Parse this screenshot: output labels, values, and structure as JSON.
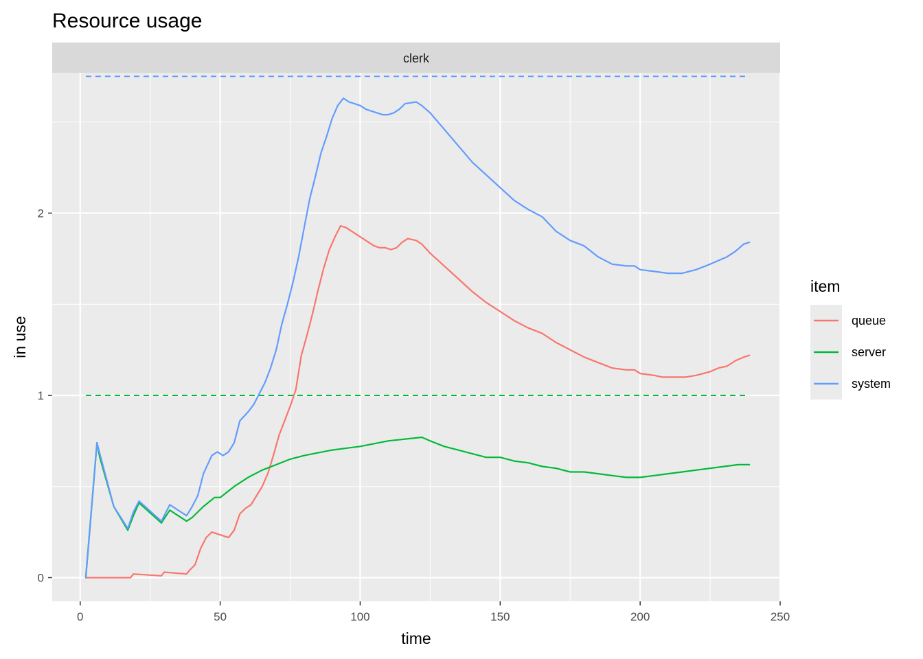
{
  "chart_data": {
    "type": "line",
    "title": "Resource usage",
    "facet": "clerk",
    "xlabel": "time",
    "ylabel": "in use",
    "xlim": [
      -10,
      250
    ],
    "ylim": [
      -0.13,
      2.77
    ],
    "x_ticks": [
      0,
      50,
      100,
      150,
      200,
      250
    ],
    "y_ticks": [
      0,
      1,
      2
    ],
    "grid": true,
    "legend": {
      "title": "item",
      "position": "right"
    },
    "series": [
      {
        "name": "queue",
        "color": "#F8766D",
        "points": [
          [
            2,
            0
          ],
          [
            5,
            0
          ],
          [
            18,
            0
          ],
          [
            19,
            0.02
          ],
          [
            29,
            0.01
          ],
          [
            30,
            0.03
          ],
          [
            38,
            0.02
          ],
          [
            39,
            0.04
          ],
          [
            41,
            0.07
          ],
          [
            43,
            0.16
          ],
          [
            45,
            0.22
          ],
          [
            47,
            0.25
          ],
          [
            49,
            0.24
          ],
          [
            53,
            0.22
          ],
          [
            55,
            0.26
          ],
          [
            57,
            0.35
          ],
          [
            59,
            0.38
          ],
          [
            61,
            0.4
          ],
          [
            63,
            0.45
          ],
          [
            65,
            0.5
          ],
          [
            67,
            0.57
          ],
          [
            69,
            0.67
          ],
          [
            71,
            0.78
          ],
          [
            73,
            0.86
          ],
          [
            75,
            0.94
          ],
          [
            77,
            1.03
          ],
          [
            79,
            1.22
          ],
          [
            81,
            1.33
          ],
          [
            83,
            1.45
          ],
          [
            85,
            1.58
          ],
          [
            87,
            1.7
          ],
          [
            89,
            1.8
          ],
          [
            91,
            1.87
          ],
          [
            93,
            1.93
          ],
          [
            95,
            1.92
          ],
          [
            97,
            1.9
          ],
          [
            99,
            1.88
          ],
          [
            101,
            1.86
          ],
          [
            103,
            1.84
          ],
          [
            105,
            1.82
          ],
          [
            107,
            1.81
          ],
          [
            109,
            1.81
          ],
          [
            111,
            1.8
          ],
          [
            113,
            1.81
          ],
          [
            115,
            1.84
          ],
          [
            117,
            1.86
          ],
          [
            120,
            1.85
          ],
          [
            122,
            1.83
          ],
          [
            125,
            1.78
          ],
          [
            130,
            1.71
          ],
          [
            135,
            1.64
          ],
          [
            140,
            1.57
          ],
          [
            145,
            1.51
          ],
          [
            150,
            1.46
          ],
          [
            155,
            1.41
          ],
          [
            160,
            1.37
          ],
          [
            165,
            1.34
          ],
          [
            170,
            1.29
          ],
          [
            175,
            1.25
          ],
          [
            180,
            1.21
          ],
          [
            185,
            1.18
          ],
          [
            190,
            1.15
          ],
          [
            195,
            1.14
          ],
          [
            198,
            1.14
          ],
          [
            200,
            1.12
          ],
          [
            205,
            1.11
          ],
          [
            208,
            1.1
          ],
          [
            212,
            1.1
          ],
          [
            216,
            1.1
          ],
          [
            220,
            1.11
          ],
          [
            225,
            1.13
          ],
          [
            228,
            1.15
          ],
          [
            231,
            1.16
          ],
          [
            234,
            1.19
          ],
          [
            237,
            1.21
          ],
          [
            239,
            1.22
          ]
        ]
      },
      {
        "name": "server",
        "color": "#00BA38",
        "points": [
          [
            2,
            0
          ],
          [
            6,
            0.74
          ],
          [
            7,
            0.66
          ],
          [
            12,
            0.39
          ],
          [
            17,
            0.26
          ],
          [
            19,
            0.34
          ],
          [
            21,
            0.41
          ],
          [
            29,
            0.3
          ],
          [
            32,
            0.37
          ],
          [
            38,
            0.31
          ],
          [
            40,
            0.33
          ],
          [
            44,
            0.39
          ],
          [
            48,
            0.44
          ],
          [
            50,
            0.44
          ],
          [
            55,
            0.5
          ],
          [
            60,
            0.55
          ],
          [
            65,
            0.59
          ],
          [
            70,
            0.62
          ],
          [
            75,
            0.65
          ],
          [
            80,
            0.67
          ],
          [
            90,
            0.7
          ],
          [
            100,
            0.72
          ],
          [
            110,
            0.75
          ],
          [
            122,
            0.77
          ],
          [
            125,
            0.75
          ],
          [
            130,
            0.72
          ],
          [
            135,
            0.7
          ],
          [
            140,
            0.68
          ],
          [
            145,
            0.66
          ],
          [
            150,
            0.66
          ],
          [
            155,
            0.64
          ],
          [
            160,
            0.63
          ],
          [
            165,
            0.61
          ],
          [
            170,
            0.6
          ],
          [
            175,
            0.58
          ],
          [
            180,
            0.58
          ],
          [
            185,
            0.57
          ],
          [
            190,
            0.56
          ],
          [
            195,
            0.55
          ],
          [
            200,
            0.55
          ],
          [
            205,
            0.56
          ],
          [
            210,
            0.57
          ],
          [
            215,
            0.58
          ],
          [
            220,
            0.59
          ],
          [
            225,
            0.6
          ],
          [
            230,
            0.61
          ],
          [
            235,
            0.62
          ],
          [
            239,
            0.62
          ]
        ]
      },
      {
        "name": "system",
        "color": "#619CFF",
        "points": [
          [
            2,
            0
          ],
          [
            6,
            0.74
          ],
          [
            7,
            0.68
          ],
          [
            12,
            0.39
          ],
          [
            17,
            0.27
          ],
          [
            19,
            0.36
          ],
          [
            21,
            0.42
          ],
          [
            29,
            0.31
          ],
          [
            32,
            0.4
          ],
          [
            38,
            0.34
          ],
          [
            40,
            0.39
          ],
          [
            42,
            0.45
          ],
          [
            44,
            0.57
          ],
          [
            47,
            0.67
          ],
          [
            49,
            0.69
          ],
          [
            51,
            0.67
          ],
          [
            53,
            0.69
          ],
          [
            55,
            0.74
          ],
          [
            57,
            0.86
          ],
          [
            60,
            0.91
          ],
          [
            62,
            0.95
          ],
          [
            64,
            1.01
          ],
          [
            66,
            1.07
          ],
          [
            68,
            1.15
          ],
          [
            70,
            1.25
          ],
          [
            72,
            1.39
          ],
          [
            74,
            1.5
          ],
          [
            76,
            1.62
          ],
          [
            78,
            1.76
          ],
          [
            80,
            1.92
          ],
          [
            82,
            2.08
          ],
          [
            84,
            2.2
          ],
          [
            86,
            2.33
          ],
          [
            88,
            2.42
          ],
          [
            90,
            2.52
          ],
          [
            92,
            2.59
          ],
          [
            94,
            2.63
          ],
          [
            96,
            2.61
          ],
          [
            98,
            2.6
          ],
          [
            100,
            2.59
          ],
          [
            102,
            2.57
          ],
          [
            104,
            2.56
          ],
          [
            106,
            2.55
          ],
          [
            108,
            2.54
          ],
          [
            110,
            2.54
          ],
          [
            112,
            2.55
          ],
          [
            114,
            2.57
          ],
          [
            116,
            2.6
          ],
          [
            120,
            2.61
          ],
          [
            122,
            2.59
          ],
          [
            125,
            2.55
          ],
          [
            130,
            2.46
          ],
          [
            135,
            2.37
          ],
          [
            140,
            2.28
          ],
          [
            145,
            2.21
          ],
          [
            150,
            2.14
          ],
          [
            155,
            2.07
          ],
          [
            160,
            2.02
          ],
          [
            165,
            1.98
          ],
          [
            170,
            1.9
          ],
          [
            175,
            1.85
          ],
          [
            180,
            1.82
          ],
          [
            185,
            1.76
          ],
          [
            190,
            1.72
          ],
          [
            195,
            1.71
          ],
          [
            198,
            1.71
          ],
          [
            200,
            1.69
          ],
          [
            205,
            1.68
          ],
          [
            210,
            1.67
          ],
          [
            215,
            1.67
          ],
          [
            220,
            1.69
          ],
          [
            225,
            1.72
          ],
          [
            228,
            1.74
          ],
          [
            231,
            1.76
          ],
          [
            234,
            1.79
          ],
          [
            237,
            1.83
          ],
          [
            239,
            1.84
          ]
        ]
      }
    ],
    "reference_lines": [
      {
        "series": "server",
        "y": 1,
        "x": [
          2,
          239
        ],
        "color": "#00BA38",
        "style": "dashed"
      },
      {
        "series": "system",
        "y": 2.75,
        "x": [
          2,
          239
        ],
        "color": "#619CFF",
        "style": "dashed"
      }
    ]
  }
}
